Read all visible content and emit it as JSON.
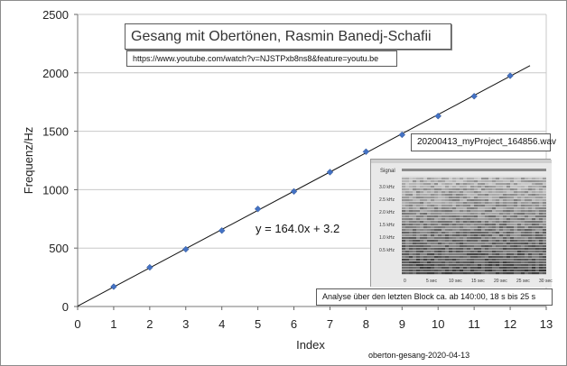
{
  "chart_data": {
    "type": "scatter",
    "xlabel": "Index",
    "ylabel": "Frequenz/Hz",
    "xlim": [
      0,
      13
    ],
    "ylim": [
      0,
      2500
    ],
    "x_ticks": [
      "0",
      "1",
      "2",
      "3",
      "4",
      "5",
      "6",
      "7",
      "8",
      "9",
      "10",
      "11",
      "12",
      "13"
    ],
    "y_ticks": [
      "0",
      "500",
      "1000",
      "1500",
      "2000",
      "2500"
    ],
    "grid": "horizontal",
    "points": [
      {
        "x": 1,
        "y": 170
      },
      {
        "x": 2,
        "y": 335
      },
      {
        "x": 3,
        "y": 490
      },
      {
        "x": 4,
        "y": 650
      },
      {
        "x": 5,
        "y": 835
      },
      {
        "x": 6,
        "y": 985
      },
      {
        "x": 7,
        "y": 1150
      },
      {
        "x": 8,
        "y": 1325
      },
      {
        "x": 9,
        "y": 1470
      },
      {
        "x": 10,
        "y": 1630
      },
      {
        "x": 11,
        "y": 1800
      },
      {
        "x": 12,
        "y": 1975
      }
    ],
    "trendline": {
      "slope": 164.0,
      "intercept": 3.2,
      "label": "y = 164.0x + 3.2"
    },
    "point_color": "#4472c4"
  },
  "annotations": {
    "title": "Gesang mit Obertönen, Rasmin Banedj-Schafii",
    "url": "https://www.youtube.com/watch?v=NJSTPxb8ns8&feature=youtu.be",
    "file": "20200413_myProject_164856.wav",
    "analysis": "Analyse über den letzten Block ca. ab 140:00,   18 s bis 25 s",
    "footer": "oberton-gesang-2020-04-13"
  },
  "spectrogram": {
    "signal_label": "Signal",
    "freq_labels": [
      "3.0 kHz",
      "2.5 kHz",
      "2.0 kHz",
      "1.5 kHz",
      "1.0 kHz",
      "0.5 kHz"
    ],
    "time_labels": [
      "0",
      "5 sec",
      "10 sec",
      "15 sec",
      "20 sec",
      "25 sec",
      "30 sec"
    ]
  }
}
